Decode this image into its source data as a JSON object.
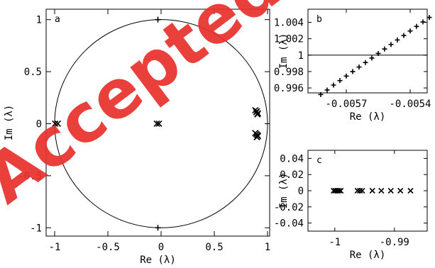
{
  "watermark": {
    "text": "Accepted manuscript",
    "color": "#e8322e"
  },
  "chart_data": [
    {
      "panel": "a",
      "type": "scatter",
      "xlabel": "Re (λ)",
      "ylabel": "Im (λ)",
      "xlim": [
        -1.08,
        1.02
      ],
      "ylim": [
        -1.08,
        1.1
      ],
      "xticks": [
        -1,
        -0.5,
        0,
        0.5,
        1
      ],
      "xtick_labels": [
        "-1",
        "-0.5",
        "0",
        "0.5",
        "1"
      ],
      "yticks": [
        -1,
        -0.5,
        0,
        0.5,
        1
      ],
      "ytick_labels": [
        "-1",
        "-0.5",
        "0",
        "0.5",
        "1"
      ],
      "unit_circle": true,
      "series": [
        {
          "marker": "plus",
          "points": [
            [
              -0.03,
              1.0
            ],
            [
              -0.03,
              -1.0
            ]
          ]
        },
        {
          "marker": "x",
          "points": [
            [
              -0.995,
              0.0
            ],
            [
              -0.97,
              0.0
            ],
            [
              -0.04,
              0.0
            ],
            [
              -0.02,
              0.0
            ],
            [
              0.885,
              0.13
            ],
            [
              0.895,
              0.11
            ],
            [
              0.905,
              0.09
            ],
            [
              0.9,
              0.12
            ],
            [
              0.91,
              0.1
            ],
            [
              0.885,
              -0.09
            ],
            [
              0.895,
              -0.1
            ],
            [
              0.905,
              -0.11
            ],
            [
              0.9,
              -0.13
            ],
            [
              0.91,
              -0.12
            ]
          ]
        }
      ]
    },
    {
      "panel": "b",
      "type": "scatter",
      "xlabel": "Re (λ)",
      "ylabel": "Im (λ)",
      "xlim": [
        -0.00588,
        -0.00532
      ],
      "ylim": [
        0.9954,
        1.0056
      ],
      "xticks": [
        -0.0057,
        -0.0054
      ],
      "xtick_labels": [
        "-0.0057",
        "-0.0054"
      ],
      "yticks": [
        0.996,
        0.998,
        1,
        1.002,
        1.004
      ],
      "ytick_labels": [
        "0.996",
        "0.998",
        "1",
        "1.002",
        "1.004"
      ],
      "reference_line_y": 1,
      "series": [
        {
          "marker": "plus",
          "points": [
            [
              -0.00582,
              0.9952
            ],
            [
              -0.00579,
              0.99575
            ],
            [
              -0.00576,
              0.99635
            ],
            [
              -0.00573,
              0.9969
            ],
            [
              -0.0057,
              0.99745
            ],
            [
              -0.00567,
              0.998
            ],
            [
              -0.00564,
              0.99855
            ],
            [
              -0.00561,
              0.9991
            ],
            [
              -0.00558,
              0.99965
            ],
            [
              -0.00555,
              1.0002
            ],
            [
              -0.00552,
              1.00075
            ],
            [
              -0.00549,
              1.0013
            ],
            [
              -0.00546,
              1.00185
            ],
            [
              -0.00543,
              1.0024
            ],
            [
              -0.0054,
              1.00295
            ],
            [
              -0.00537,
              1.0035
            ],
            [
              -0.00534,
              1.00405
            ],
            [
              -0.00531,
              1.0046
            ]
          ]
        }
      ]
    },
    {
      "panel": "c",
      "type": "scatter",
      "xlabel": "Re (λ)",
      "ylabel": "Im (λ)",
      "xlim": [
        -1.0045,
        -0.9845
      ],
      "ylim": [
        -0.05,
        0.05
      ],
      "xticks": [
        -1,
        -0.99
      ],
      "xtick_labels": [
        "-1",
        "-0.99"
      ],
      "yticks": [
        -0.04,
        -0.02,
        0,
        0.02,
        0.04
      ],
      "ytick_labels": [
        "-0.04",
        "-0.02",
        "0",
        "0.02",
        "0.04"
      ],
      "series": [
        {
          "marker": "x",
          "points": [
            [
              -1.0002,
              0
            ],
            [
              -0.9999,
              0
            ],
            [
              -0.9996,
              0
            ],
            [
              -0.9993,
              0
            ],
            [
              -0.999,
              0
            ],
            [
              -0.9962,
              0
            ],
            [
              -0.9958,
              0
            ],
            [
              -0.9954,
              0
            ],
            [
              -0.9937,
              0
            ],
            [
              -0.9922,
              0
            ],
            [
              -0.9906,
              0
            ],
            [
              -0.989,
              0
            ],
            [
              -0.9873,
              0
            ]
          ]
        }
      ]
    }
  ]
}
